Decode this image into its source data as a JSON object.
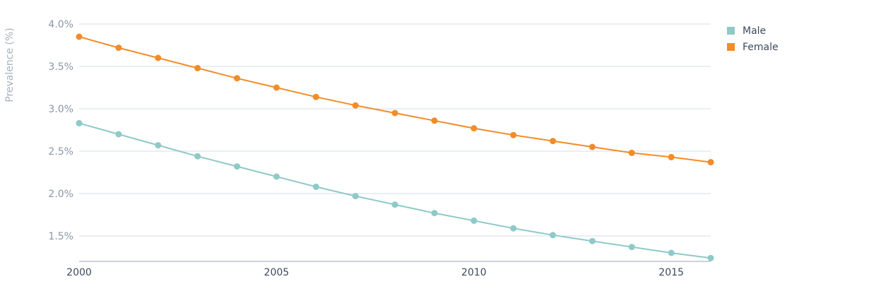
{
  "chart_data": {
    "type": "line",
    "title": "",
    "xlabel": "",
    "ylabel": "Prevalence (%)",
    "x": [
      2000,
      2001,
      2002,
      2003,
      2004,
      2005,
      2006,
      2007,
      2008,
      2009,
      2010,
      2011,
      2012,
      2013,
      2014,
      2015,
      2016
    ],
    "xlim": [
      2000,
      2016
    ],
    "ylim": [
      1.2,
      4.0
    ],
    "x_ticks": [
      2000,
      2005,
      2010,
      2015
    ],
    "x_tick_labels": [
      "2000",
      "2005",
      "2010",
      "2015"
    ],
    "y_ticks": [
      1.5,
      2.0,
      2.5,
      3.0,
      3.5,
      4.0
    ],
    "y_tick_labels": [
      "1.5%",
      "2.0%",
      "2.5%",
      "3.0%",
      "3.5%",
      "4.0%"
    ],
    "grid": true,
    "legend_position": "top-right",
    "series": [
      {
        "name": "Male",
        "color": "#8ecac7",
        "values": [
          2.83,
          2.7,
          2.57,
          2.44,
          2.32,
          2.2,
          2.08,
          1.97,
          1.87,
          1.77,
          1.68,
          1.59,
          1.51,
          1.44,
          1.37,
          1.3,
          1.24
        ]
      },
      {
        "name": "Female",
        "color": "#f28c28",
        "values": [
          3.85,
          3.72,
          3.6,
          3.48,
          3.36,
          3.25,
          3.14,
          3.04,
          2.95,
          2.86,
          2.77,
          2.69,
          2.62,
          2.55,
          2.48,
          2.43,
          2.37
        ]
      }
    ]
  }
}
